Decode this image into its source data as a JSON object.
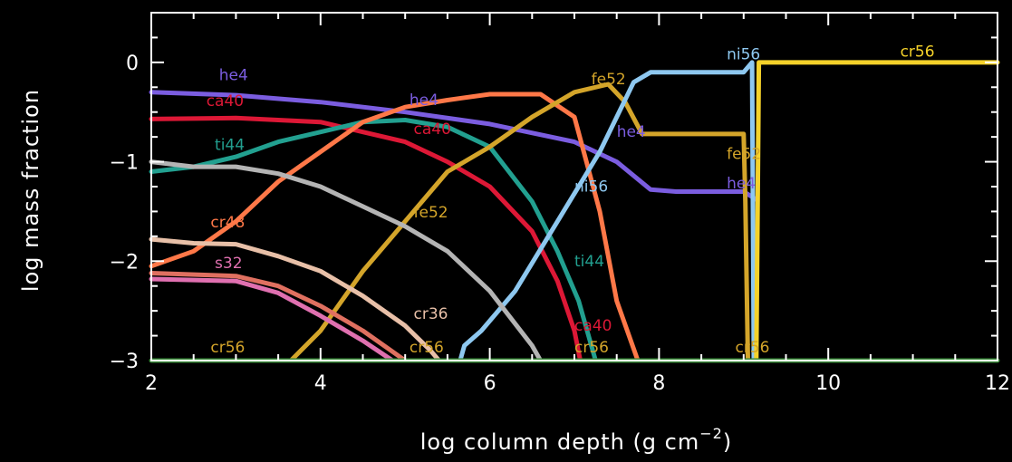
{
  "chart_data": {
    "type": "line",
    "title": "",
    "xlabel": "log column depth (g cm",
    "xlabel_sup": "−2",
    "xlabel_close": ")",
    "ylabel": "log mass fraction",
    "xlim": [
      2,
      12
    ],
    "ylim": [
      -3,
      0.5
    ],
    "x_ticks": [
      2,
      4,
      6,
      8,
      10,
      12
    ],
    "x_tick_labels": [
      "2",
      "4",
      "6",
      "8",
      "10",
      "12"
    ],
    "y_ticks": [
      0,
      -1,
      -2,
      -3
    ],
    "y_tick_labels": [
      "0",
      "−1",
      "−2",
      "−3"
    ],
    "background": "#000000",
    "axis_color": "#ffffff",
    "grid": false,
    "series": [
      {
        "name": "he4",
        "color": "#7b5de0",
        "points": [
          [
            2,
            -0.3
          ],
          [
            3,
            -0.33
          ],
          [
            4,
            -0.4
          ],
          [
            5,
            -0.5
          ],
          [
            6,
            -0.62
          ],
          [
            7,
            -0.8
          ],
          [
            7.5,
            -1.0
          ],
          [
            7.9,
            -1.28
          ],
          [
            8.2,
            -1.3
          ],
          [
            9,
            -1.3
          ],
          [
            9.15,
            -1.38
          ]
        ]
      },
      {
        "name": "ca40",
        "color": "#dd1836",
        "points": [
          [
            2,
            -0.57
          ],
          [
            3,
            -0.56
          ],
          [
            4,
            -0.6
          ],
          [
            4.5,
            -0.7
          ],
          [
            5,
            -0.8
          ],
          [
            5.5,
            -1.0
          ],
          [
            6,
            -1.25
          ],
          [
            6.5,
            -1.7
          ],
          [
            6.8,
            -2.2
          ],
          [
            7,
            -2.7
          ],
          [
            7.07,
            -3.0
          ]
        ]
      },
      {
        "name": "ti44",
        "color": "#22a090",
        "points": [
          [
            2,
            -1.1
          ],
          [
            2.5,
            -1.05
          ],
          [
            3,
            -0.95
          ],
          [
            3.5,
            -0.8
          ],
          [
            4,
            -0.7
          ],
          [
            4.5,
            -0.6
          ],
          [
            5,
            -0.58
          ],
          [
            5.5,
            -0.65
          ],
          [
            6,
            -0.85
          ],
          [
            6.5,
            -1.4
          ],
          [
            6.8,
            -1.9
          ],
          [
            7.05,
            -2.4
          ],
          [
            7.2,
            -2.85
          ],
          [
            7.25,
            -3.0
          ]
        ]
      },
      {
        "name": "cr48",
        "color": "#ff7848",
        "points": [
          [
            2,
            -2.05
          ],
          [
            2.5,
            -1.9
          ],
          [
            3,
            -1.6
          ],
          [
            3.5,
            -1.2
          ],
          [
            4,
            -0.9
          ],
          [
            4.5,
            -0.6
          ],
          [
            5,
            -0.45
          ],
          [
            5.5,
            -0.38
          ],
          [
            6,
            -0.32
          ],
          [
            6.6,
            -0.32
          ],
          [
            7,
            -0.55
          ],
          [
            7.3,
            -1.5
          ],
          [
            7.5,
            -2.4
          ],
          [
            7.75,
            -3.0
          ]
        ]
      },
      {
        "name": "fe52",
        "color": "#d4a52a",
        "points": [
          [
            3.65,
            -3.0
          ],
          [
            4,
            -2.7
          ],
          [
            4.5,
            -2.1
          ],
          [
            5,
            -1.6
          ],
          [
            5.5,
            -1.1
          ],
          [
            6,
            -0.85
          ],
          [
            6.5,
            -0.55
          ],
          [
            7,
            -0.3
          ],
          [
            7.4,
            -0.22
          ],
          [
            7.6,
            -0.4
          ],
          [
            7.8,
            -0.72
          ],
          [
            9,
            -0.72
          ],
          [
            9.02,
            -1.4
          ],
          [
            9.05,
            -3.0
          ]
        ]
      },
      {
        "name": "ni56",
        "color": "#8ec8f0",
        "points": [
          [
            5.65,
            -3.0
          ],
          [
            5.7,
            -2.85
          ],
          [
            5.9,
            -2.7
          ],
          [
            6.3,
            -2.3
          ],
          [
            6.8,
            -1.6
          ],
          [
            7.3,
            -0.9
          ],
          [
            7.7,
            -0.2
          ],
          [
            7.9,
            -0.1
          ],
          [
            9,
            -0.1
          ],
          [
            9.1,
            0.0
          ],
          [
            9.12,
            -3.0
          ],
          [
            7.85,
            -3.0
          ]
        ]
      },
      {
        "name": "cr56",
        "color": "#f5d22a",
        "points": [
          [
            9.15,
            -3.0
          ],
          [
            9.18,
            0.0
          ],
          [
            12,
            0.0
          ]
        ]
      },
      {
        "name": "gray",
        "color": "#b4b4b4",
        "points": [
          [
            2,
            -1.0
          ],
          [
            2.5,
            -1.05
          ],
          [
            3,
            -1.05
          ],
          [
            3.5,
            -1.12
          ],
          [
            4,
            -1.25
          ],
          [
            4.5,
            -1.45
          ],
          [
            5,
            -1.65
          ],
          [
            5.5,
            -1.9
          ],
          [
            6,
            -2.3
          ],
          [
            6.5,
            -2.85
          ],
          [
            6.6,
            -3.0
          ]
        ]
      },
      {
        "name": "tan",
        "color": "#e8c0a8",
        "points": [
          [
            2,
            -1.78
          ],
          [
            2.5,
            -1.82
          ],
          [
            3,
            -1.83
          ],
          [
            3.5,
            -1.95
          ],
          [
            4,
            -2.1
          ],
          [
            4.5,
            -2.35
          ],
          [
            5,
            -2.65
          ],
          [
            5.3,
            -2.9
          ],
          [
            5.4,
            -3.0
          ]
        ]
      },
      {
        "name": "salmon",
        "color": "#e07060",
        "points": [
          [
            2,
            -2.12
          ],
          [
            3,
            -2.15
          ],
          [
            3.5,
            -2.25
          ],
          [
            4,
            -2.45
          ],
          [
            4.5,
            -2.7
          ],
          [
            5,
            -3.0
          ]
        ]
      },
      {
        "name": "pink",
        "color": "#e070b0",
        "points": [
          [
            2,
            -2.18
          ],
          [
            3,
            -2.2
          ],
          [
            3.5,
            -2.32
          ],
          [
            4,
            -2.55
          ],
          [
            4.5,
            -2.8
          ],
          [
            4.85,
            -3.0
          ]
        ]
      },
      {
        "name": "green",
        "color": "#3a8a3a",
        "points": [
          [
            2,
            -3.0
          ],
          [
            12,
            -3.0
          ]
        ]
      }
    ],
    "annotations": [
      {
        "text": "he4",
        "x": 2.8,
        "y": -0.18,
        "color": "#7b5de0"
      },
      {
        "text": "ca40",
        "x": 2.65,
        "y": -0.44,
        "color": "#dd1836"
      },
      {
        "text": "ti44",
        "x": 2.75,
        "y": -0.88,
        "color": "#22a090"
      },
      {
        "text": "cr48",
        "x": 2.7,
        "y": -1.66,
        "color": "#ff7848"
      },
      {
        "text": "s32",
        "x": 2.75,
        "y": -2.07,
        "color": "#e070b0"
      },
      {
        "text": "cr56",
        "x": 2.7,
        "y": -2.92,
        "color": "#d4a52a"
      },
      {
        "text": "he4",
        "x": 5.05,
        "y": -0.43,
        "color": "#7b5de0"
      },
      {
        "text": "ca40",
        "x": 5.1,
        "y": -0.72,
        "color": "#dd1836"
      },
      {
        "text": "fe52",
        "x": 5.1,
        "y": -1.56,
        "color": "#d4a52a"
      },
      {
        "text": "cr36",
        "x": 5.1,
        "y": -2.58,
        "color": "#e8c0a8"
      },
      {
        "text": "cr56",
        "x": 5.05,
        "y": -2.92,
        "color": "#d4a52a"
      },
      {
        "text": "fe52",
        "x": 7.2,
        "y": -0.22,
        "color": "#d4a52a"
      },
      {
        "text": "he4",
        "x": 7.5,
        "y": -0.75,
        "color": "#7b5de0"
      },
      {
        "text": "ni56",
        "x": 7.0,
        "y": -1.3,
        "color": "#8ec8f0"
      },
      {
        "text": "ti44",
        "x": 7.0,
        "y": -2.05,
        "color": "#22a090"
      },
      {
        "text": "ca40",
        "x": 7.0,
        "y": -2.7,
        "color": "#dd1836"
      },
      {
        "text": "cr56",
        "x": 7.0,
        "y": -2.92,
        "color": "#d4a52a"
      },
      {
        "text": "ni56",
        "x": 8.8,
        "y": 0.03,
        "color": "#8ec8f0"
      },
      {
        "text": "fe52",
        "x": 8.8,
        "y": -0.97,
        "color": "#d4a52a"
      },
      {
        "text": "he4",
        "x": 8.8,
        "y": -1.27,
        "color": "#7b5de0"
      },
      {
        "text": "cr56",
        "x": 8.9,
        "y": -2.92,
        "color": "#d4a52a"
      },
      {
        "text": "cr56",
        "x": 10.85,
        "y": 0.06,
        "color": "#f5d22a"
      }
    ]
  }
}
